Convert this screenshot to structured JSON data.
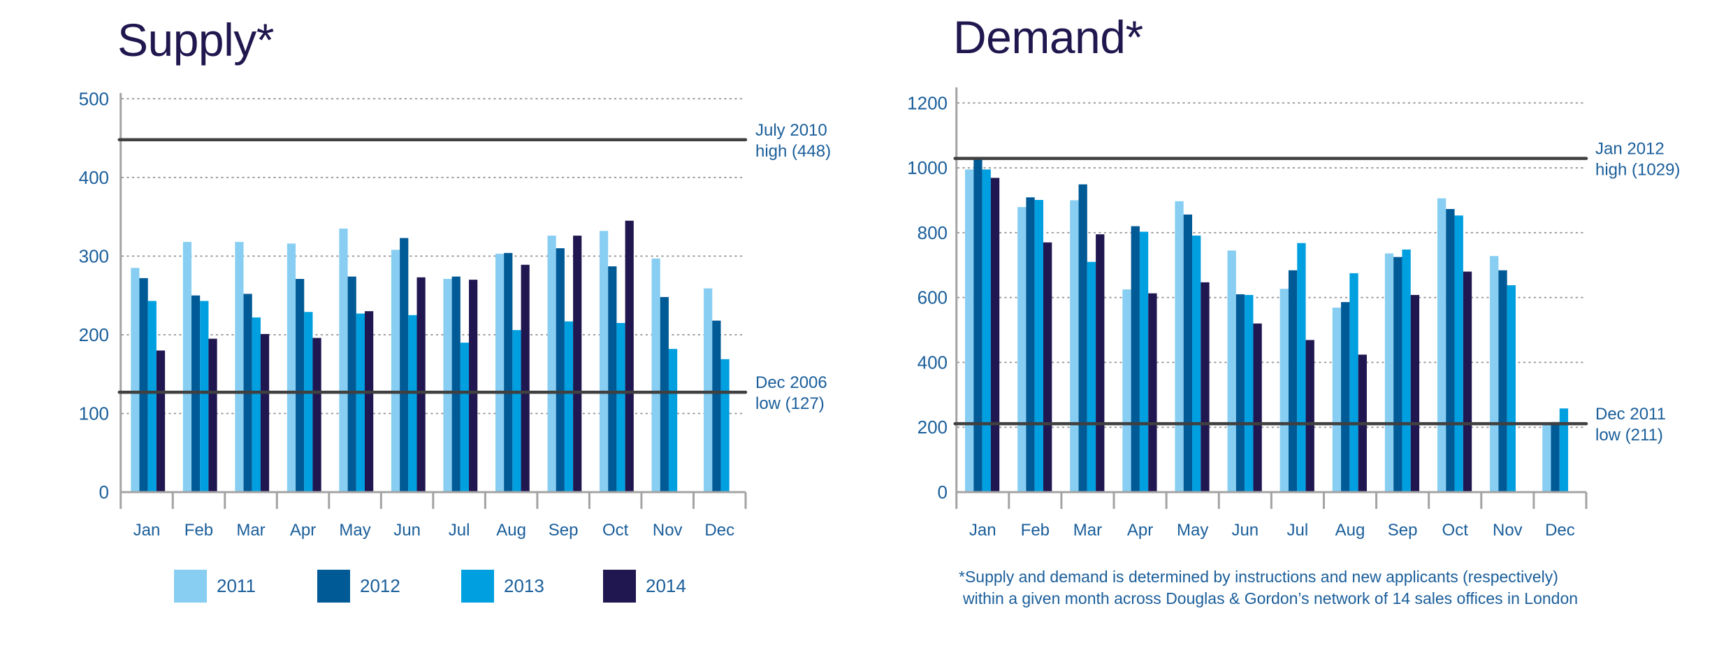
{
  "chart_data": [
    {
      "id": "supply",
      "type": "bar",
      "title": "Supply*",
      "xlabel": "",
      "ylabel": "",
      "ylim": [
        0,
        500
      ],
      "yticks": [
        0,
        100,
        200,
        300,
        400,
        500
      ],
      "grid": true,
      "categories": [
        "Jan",
        "Feb",
        "Mar",
        "Apr",
        "May",
        "Jun",
        "Jul",
        "Aug",
        "Sep",
        "Oct",
        "Nov",
        "Dec"
      ],
      "series": [
        {
          "name": "2011",
          "color": "#87CEF2",
          "values": [
            285,
            318,
            318,
            316,
            335,
            308,
            271,
            303,
            326,
            332,
            297,
            259
          ]
        },
        {
          "name": "2012",
          "color": "#005A96",
          "values": [
            272,
            250,
            252,
            271,
            274,
            323,
            274,
            304,
            310,
            287,
            248,
            218
          ]
        },
        {
          "name": "2013",
          "color": "#009FE0",
          "values": [
            243,
            243,
            222,
            229,
            227,
            225,
            190,
            206,
            217,
            215,
            182,
            169
          ]
        },
        {
          "name": "2014",
          "color": "#201650",
          "values": [
            180,
            195,
            201,
            196,
            230,
            273,
            270,
            289,
            326,
            345,
            null,
            null
          ]
        }
      ],
      "reference_lines": [
        {
          "value": 448,
          "label_line1": "July 2010",
          "label_line2": "high (448)"
        },
        {
          "value": 127,
          "label_line1": "Dec 2006",
          "label_line2": "low (127)"
        }
      ]
    },
    {
      "id": "demand",
      "type": "bar",
      "title": "Demand*",
      "xlabel": "",
      "ylabel": "",
      "ylim": [
        0,
        1200
      ],
      "yticks": [
        0,
        200,
        400,
        600,
        800,
        1000,
        1200
      ],
      "grid": true,
      "categories": [
        "Jan",
        "Feb",
        "Mar",
        "Apr",
        "May",
        "Jun",
        "Jul",
        "Aug",
        "Sep",
        "Oct",
        "Nov",
        "Dec"
      ],
      "series": [
        {
          "name": "2011",
          "color": "#87CEF2",
          "values": [
            995,
            879,
            900,
            625,
            897,
            745,
            627,
            569,
            736,
            906,
            728,
            211
          ]
        },
        {
          "name": "2012",
          "color": "#005A96",
          "values": [
            1029,
            909,
            949,
            820,
            856,
            610,
            684,
            586,
            725,
            873,
            684,
            216
          ]
        },
        {
          "name": "2013",
          "color": "#009FE0",
          "values": [
            995,
            901,
            710,
            803,
            791,
            608,
            768,
            675,
            748,
            853,
            638,
            258
          ]
        },
        {
          "name": "2014",
          "color": "#201650",
          "values": [
            969,
            770,
            795,
            613,
            647,
            520,
            469,
            424,
            608,
            680,
            null,
            null
          ]
        }
      ],
      "reference_lines": [
        {
          "value": 1029,
          "label_line1": "Jan 2012",
          "label_line2": "high (1029)"
        },
        {
          "value": 211,
          "label_line1": "Dec 2011",
          "label_line2": "low (211)"
        }
      ]
    }
  ],
  "titles": {
    "supply": "Supply*",
    "demand": "Demand*"
  },
  "legend": [
    {
      "label": "2011",
      "color": "#87CEF2"
    },
    {
      "label": "2012",
      "color": "#005A96"
    },
    {
      "label": "2013",
      "color": "#009FE0"
    },
    {
      "label": "2014",
      "color": "#201650"
    }
  ],
  "footnote": {
    "line1": "*Supply and demand is determined by instructions and new applicants (respectively)",
    "line2": "within a given month across Douglas & Gordon’s network of 14 sales offices in London"
  }
}
